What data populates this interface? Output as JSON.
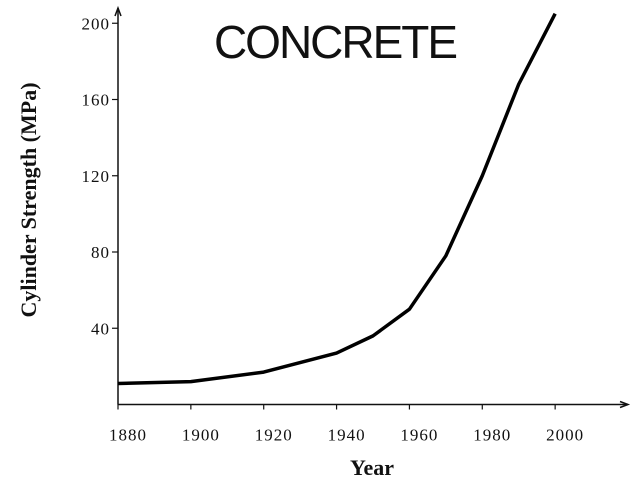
{
  "chart_data": {
    "type": "line",
    "title": "CONCRETE",
    "x_label": "Year",
    "y_label": "Cylinder Strength (MPa)",
    "x": [
      1880,
      1900,
      1920,
      1940,
      1950,
      1960,
      1970,
      1980,
      1990,
      2000
    ],
    "series": [
      {
        "name": "Concrete",
        "color": "#000000",
        "values": [
          11,
          12,
          17,
          27,
          36,
          50,
          78,
          120,
          168,
          205
        ]
      }
    ],
    "xlim": [
      1880,
      2020
    ],
    "ylim": [
      0,
      208
    ],
    "xticks": [
      1880,
      1900,
      1920,
      1940,
      1960,
      1980,
      2000
    ],
    "yticks": [
      40,
      80,
      120,
      160,
      200
    ]
  }
}
